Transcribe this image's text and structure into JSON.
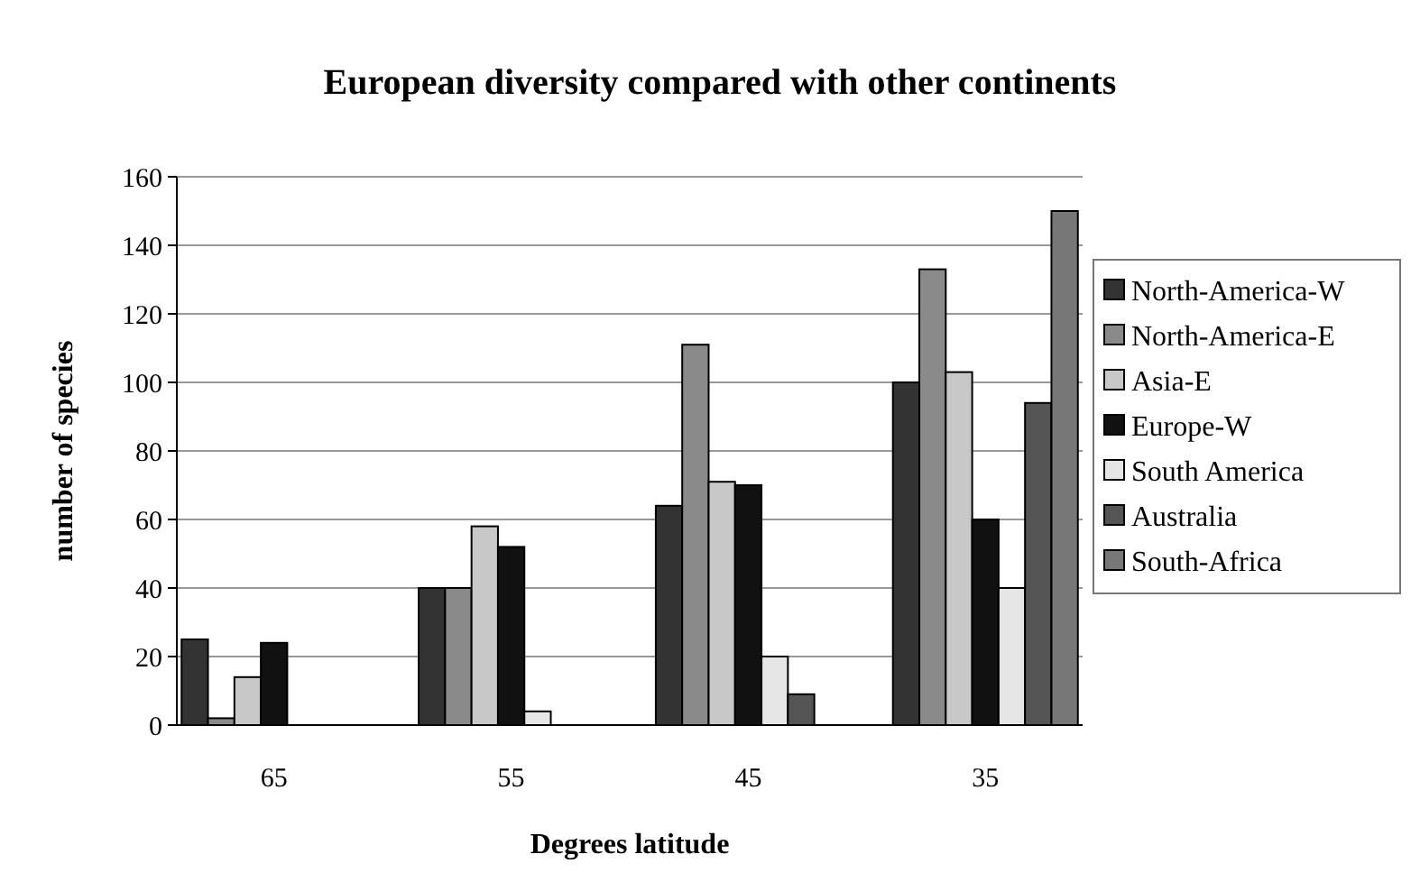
{
  "chart_data": {
    "type": "bar",
    "title": "European diversity compared with other continents",
    "xlabel": "Degrees latitude",
    "ylabel": "number of species",
    "categories": [
      "65",
      "55",
      "45",
      "35"
    ],
    "series": [
      {
        "name": "North-America-W",
        "color": "#333333",
        "values": [
          25,
          40,
          64,
          100
        ]
      },
      {
        "name": "North-America-E",
        "color": "#8a8a8a",
        "values": [
          2,
          40,
          111,
          133
        ]
      },
      {
        "name": "Asia-E",
        "color": "#c8c8c8",
        "values": [
          14,
          58,
          71,
          103
        ]
      },
      {
        "name": "Europe-W",
        "color": "#111111",
        "values": [
          24,
          52,
          70,
          60
        ]
      },
      {
        "name": "South America",
        "color": "#e6e6e6",
        "values": [
          null,
          4,
          20,
          40
        ]
      },
      {
        "name": "Australia",
        "color": "#555555",
        "values": [
          null,
          null,
          9,
          94
        ]
      },
      {
        "name": "South-Africa",
        "color": "#777777",
        "values": [
          null,
          null,
          null,
          150
        ]
      }
    ],
    "ylim": [
      0,
      160
    ],
    "yticks": [
      0,
      20,
      40,
      60,
      80,
      100,
      120,
      140,
      160
    ],
    "grid": "y",
    "legend": "right"
  }
}
